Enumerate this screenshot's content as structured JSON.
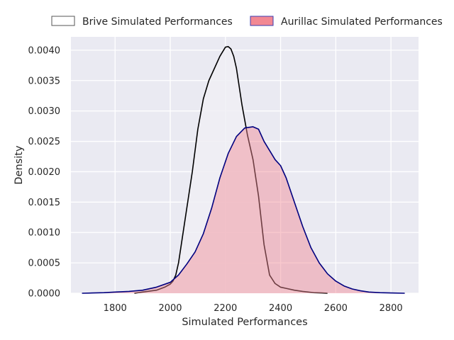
{
  "chart_data": {
    "type": "area",
    "title": "",
    "xlabel": "Simulated Performances",
    "ylabel": "Density",
    "xlim": [
      1640,
      2900
    ],
    "ylim": [
      0,
      0.00422
    ],
    "x_ticks": [
      1800,
      2000,
      2200,
      2400,
      2600,
      2800
    ],
    "x_tick_labels": [
      "1800",
      "2000",
      "2200",
      "2400",
      "2600",
      "2800"
    ],
    "y_ticks": [
      0,
      0.0005,
      0.001,
      0.0015,
      0.002,
      0.0025,
      0.003,
      0.0035,
      0.004
    ],
    "y_tick_labels": [
      "0.0000",
      "0.0005",
      "0.0010",
      "0.0015",
      "0.0020",
      "0.0025",
      "0.0030",
      "0.0035",
      "0.0040"
    ],
    "grid": true,
    "legend_position": "top",
    "series": [
      {
        "name": "Brive Simulated Performances",
        "line_color": "#000000",
        "fill_color": "#f0eef4",
        "fill_opacity": 0.85,
        "x": [
          1870,
          1900,
          1950,
          1980,
          2000,
          2010,
          2020,
          2030,
          2040,
          2060,
          2080,
          2100,
          2120,
          2140,
          2160,
          2180,
          2200,
          2210,
          2220,
          2230,
          2240,
          2260,
          2280,
          2300,
          2320,
          2340,
          2360,
          2380,
          2400,
          2420,
          2450,
          2480,
          2520,
          2550,
          2570
        ],
        "y": [
          0,
          2e-05,
          5e-05,
          0.0001,
          0.00015,
          0.0002,
          0.0003,
          0.0005,
          0.0008,
          0.0014,
          0.002,
          0.0027,
          0.0032,
          0.0035,
          0.0037,
          0.0039,
          0.00405,
          0.00406,
          0.00402,
          0.0039,
          0.0037,
          0.0031,
          0.0026,
          0.0022,
          0.0016,
          0.0008,
          0.0003,
          0.00016,
          0.0001,
          8e-05,
          5e-05,
          3e-05,
          1e-05,
          5e-06,
          0
        ]
      },
      {
        "name": "Aurillac Simulated Performances",
        "line_color": "#00007f",
        "fill_color": "#f28893",
        "fill_opacity": 0.45,
        "x": [
          1680,
          1720,
          1760,
          1800,
          1850,
          1900,
          1950,
          2000,
          2030,
          2060,
          2090,
          2120,
          2150,
          2180,
          2210,
          2240,
          2270,
          2300,
          2320,
          2340,
          2360,
          2380,
          2400,
          2420,
          2450,
          2480,
          2510,
          2540,
          2570,
          2600,
          2630,
          2660,
          2690,
          2720,
          2760,
          2800,
          2850
        ],
        "y": [
          0,
          5e-06,
          1e-05,
          2e-05,
          3e-05,
          5e-05,
          0.0001,
          0.00018,
          0.0003,
          0.00048,
          0.00068,
          0.00098,
          0.0014,
          0.0019,
          0.0023,
          0.00258,
          0.00272,
          0.00274,
          0.0027,
          0.0025,
          0.00235,
          0.0022,
          0.0021,
          0.0019,
          0.0015,
          0.0011,
          0.00075,
          0.0005,
          0.00032,
          0.0002,
          0.00012,
          7e-05,
          4e-05,
          2e-05,
          1e-05,
          5e-06,
          0
        ]
      }
    ]
  }
}
